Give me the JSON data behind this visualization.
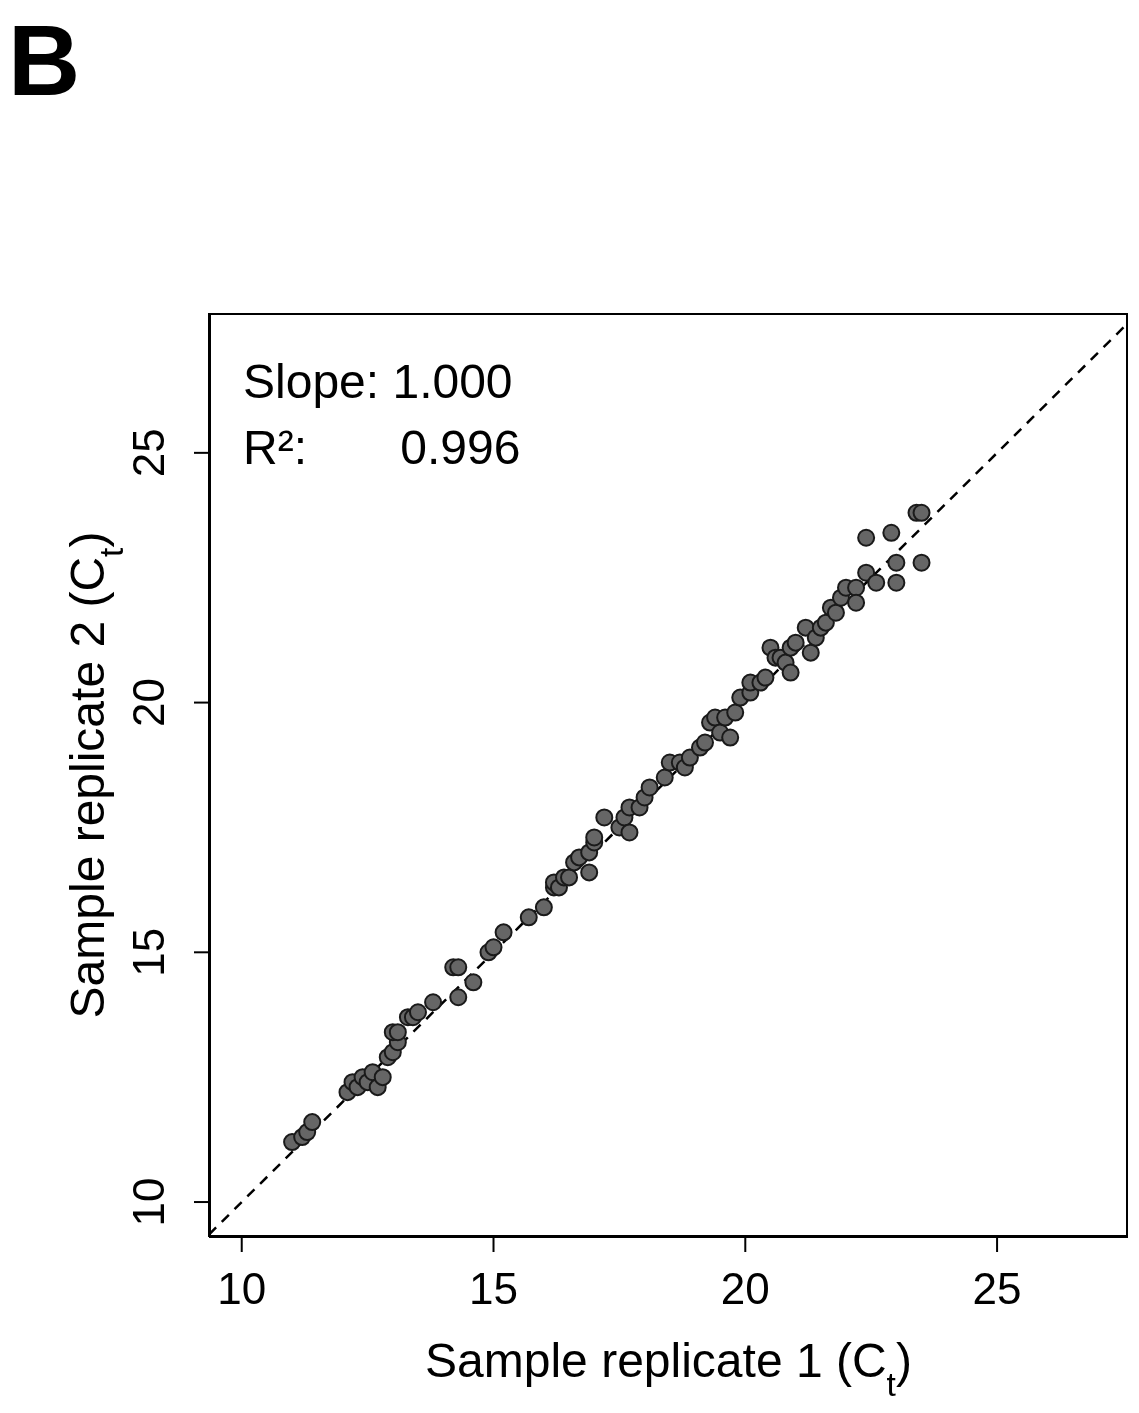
{
  "chart_data": {
    "type": "scatter",
    "xlabel": "Sample replicate 1 (C$_{t}$)",
    "ylabel": "Sample replicate 2 (C$_{t}$)",
    "annotations": [
      "B",
      "Slope: 1.000",
      "R²:       0.996"
    ],
    "xlim": [
      9.35,
      27.6
    ],
    "ylim": [
      9.3,
      27.8
    ],
    "xticks": [
      10,
      15,
      20,
      25
    ],
    "yticks": [
      10,
      15,
      20,
      25
    ],
    "series": [
      {
        "color": "#666666",
        "marker": "circle",
        "x": [
          11.0,
          11.2,
          11.3,
          11.4,
          12.1,
          12.2,
          12.3,
          12.4,
          12.5,
          12.6,
          12.7,
          12.8,
          12.9,
          13.0,
          13.1,
          13.0,
          13.1,
          13.3,
          13.4,
          13.5,
          13.8,
          14.2,
          14.3,
          14.3,
          14.6,
          14.9,
          15.0,
          15.2,
          15.7,
          16.0,
          16.2,
          16.2,
          16.3,
          16.4,
          16.5,
          16.6,
          16.7,
          16.9,
          16.9,
          17.0,
          17.0,
          17.2,
          17.5,
          17.6,
          17.7,
          17.7,
          17.9,
          18.0,
          18.1,
          18.4,
          18.5,
          18.7,
          18.8,
          18.9,
          19.1,
          19.2,
          19.3,
          19.4,
          19.5,
          19.7,
          19.6,
          19.8,
          19.9,
          20.1,
          20.1,
          20.3,
          20.4,
          20.5,
          20.6,
          20.7,
          20.8,
          20.9,
          20.9,
          21.0,
          21.2,
          21.3,
          21.4,
          21.5,
          21.6,
          21.7,
          21.8,
          21.9,
          22.0,
          22.2,
          22.2,
          22.4,
          22.4,
          22.6,
          22.9,
          23.0,
          23.0,
          23.4,
          23.5,
          23.5
        ],
        "values": [
          11.2,
          11.3,
          11.4,
          11.6,
          12.2,
          12.4,
          12.3,
          12.5,
          12.4,
          12.6,
          12.3,
          12.5,
          12.9,
          13.0,
          13.2,
          13.4,
          13.4,
          13.7,
          13.7,
          13.8,
          14.0,
          14.7,
          14.7,
          14.1,
          14.4,
          15.0,
          15.1,
          15.4,
          15.7,
          15.9,
          16.3,
          16.4,
          16.3,
          16.5,
          16.5,
          16.8,
          16.9,
          16.6,
          17.0,
          17.2,
          17.3,
          17.7,
          17.5,
          17.7,
          17.9,
          17.4,
          17.9,
          18.1,
          18.3,
          18.5,
          18.8,
          18.8,
          18.7,
          18.9,
          19.1,
          19.2,
          19.6,
          19.7,
          19.4,
          19.3,
          19.7,
          19.8,
          20.1,
          20.2,
          20.4,
          20.4,
          20.5,
          21.1,
          20.9,
          20.9,
          20.8,
          20.6,
          21.1,
          21.2,
          21.5,
          21.0,
          21.3,
          21.5,
          21.6,
          21.9,
          21.8,
          22.1,
          22.3,
          22.3,
          22.0,
          22.6,
          23.3,
          22.4,
          23.4,
          22.8,
          22.4,
          23.8,
          23.8,
          22.8
        ]
      },
      {
        "type": "line",
        "color": "#000000",
        "line_style": "dashed",
        "marker": "none",
        "x": [
          9.35,
          27.6
        ],
        "values": [
          9.35,
          27.6
        ]
      }
    ]
  }
}
